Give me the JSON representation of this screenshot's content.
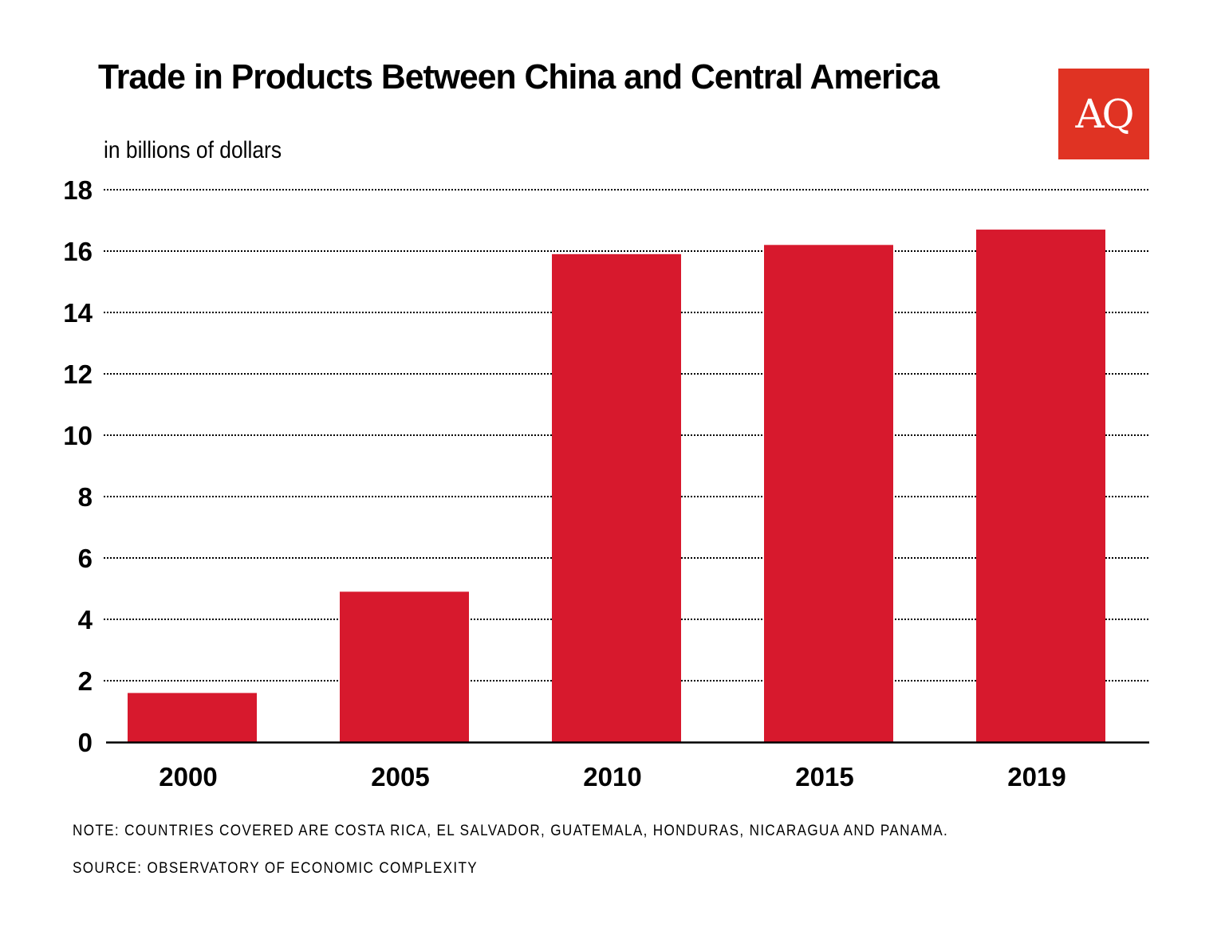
{
  "chart_data": {
    "type": "bar",
    "title": "Trade in Products Between China and Central America",
    "subtitle": "in billions of dollars",
    "xlabel": "",
    "ylabel": "in billions of dollars",
    "categories": [
      "2000",
      "2005",
      "2010",
      "2015",
      "2019"
    ],
    "values": [
      1.6,
      4.9,
      15.9,
      16.2,
      16.7
    ],
    "ylim": [
      0,
      18
    ],
    "yticks": [
      "0",
      "2",
      "4",
      "6",
      "8",
      "10",
      "12",
      "14",
      "16",
      "18"
    ],
    "grid": true,
    "bar_color": "#d7192d"
  },
  "logo": "AQ",
  "note": "NOTE: COUNTRIES COVERED ARE COSTA RICA, EL SALVADOR, GUATEMALA, HONDURAS, NICARAGUA AND PANAMA.",
  "source": "SOURCE: OBSERVATORY OF ECONOMIC COMPLEXITY"
}
